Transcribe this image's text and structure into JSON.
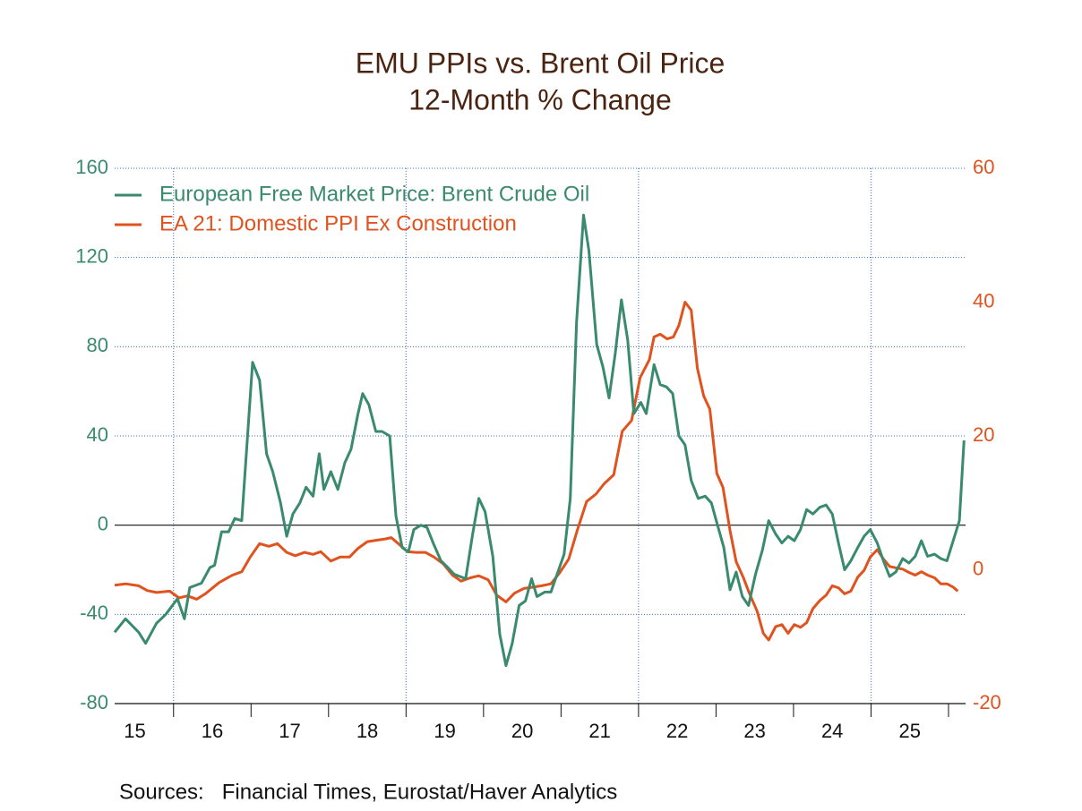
{
  "chart_data": {
    "type": "line",
    "title": "EMU PPIs vs. Brent Oil Price",
    "subtitle": "12-Month % Change",
    "source": "Sources:   Financial Times, Eurostat/Haver Analytics",
    "legend": "upper left",
    "xlim": [
      2015.24,
      2026.22
    ],
    "xticks": [
      {
        "value": 2015.5,
        "label": "15"
      },
      {
        "value": 2016.5,
        "label": "16"
      },
      {
        "value": 2017.5,
        "label": "17"
      },
      {
        "value": 2018.5,
        "label": "18"
      },
      {
        "value": 2019.5,
        "label": "19"
      },
      {
        "value": 2020.5,
        "label": "20"
      },
      {
        "value": 2021.5,
        "label": "21"
      },
      {
        "value": 2022.5,
        "label": "22"
      },
      {
        "value": 2023.5,
        "label": "23"
      },
      {
        "value": 2024.5,
        "label": "24"
      },
      {
        "value": 2025.5,
        "label": "25"
      }
    ],
    "x_tick_marks": [
      2016,
      2017,
      2018,
      2019,
      2020,
      2021,
      2022,
      2023,
      2024,
      2025,
      2026
    ],
    "xgrid": [
      2016,
      2019,
      2022,
      2025
    ],
    "ylim": [
      -80,
      160
    ],
    "yticks": [
      -80,
      -40,
      0,
      40,
      80,
      120,
      160
    ],
    "y2lim": [
      -20,
      60
    ],
    "y2ticks": [
      -20,
      0,
      20,
      40,
      60
    ],
    "grid": true,
    "series": [
      {
        "name": "European Free Market Price: Brent Crude Oil",
        "color": "#3a8a6e",
        "x": [
          2015.24,
          2015.38,
          2015.55,
          2015.64,
          2015.78,
          2015.9,
          2016.05,
          2016.14,
          2016.21,
          2016.36,
          2016.47,
          2016.53,
          2016.62,
          2016.71,
          2016.79,
          2016.88,
          2017.02,
          2017.11,
          2017.2,
          2017.28,
          2017.38,
          2017.46,
          2017.54,
          2017.63,
          2017.71,
          2017.8,
          2017.88,
          2017.94,
          2018.03,
          2018.12,
          2018.21,
          2018.29,
          2018.38,
          2018.44,
          2018.52,
          2018.61,
          2018.69,
          2018.79,
          2018.87,
          2018.95,
          2019.03,
          2019.1,
          2019.19,
          2019.27,
          2019.35,
          2019.45,
          2019.54,
          2019.62,
          2019.77,
          2019.86,
          2019.94,
          2020.02,
          2020.12,
          2020.21,
          2020.29,
          2020.37,
          2020.46,
          2020.54,
          2020.62,
          2020.69,
          2020.79,
          2020.87,
          2020.95,
          2021.04,
          2021.12,
          2021.2,
          2021.29,
          2021.36,
          2021.46,
          2021.54,
          2021.62,
          2021.7,
          2021.78,
          2021.86,
          2021.94,
          2022.03,
          2022.1,
          2022.2,
          2022.28,
          2022.36,
          2022.44,
          2022.52,
          2022.6,
          2022.68,
          2022.77,
          2022.86,
          2022.94,
          2023.02,
          2023.1,
          2023.18,
          2023.26,
          2023.34,
          2023.42,
          2023.51,
          2023.6,
          2023.68,
          2023.77,
          2023.85,
          2023.93,
          2024.01,
          2024.09,
          2024.17,
          2024.25,
          2024.34,
          2024.42,
          2024.5,
          2024.58,
          2024.66,
          2024.74,
          2024.83,
          2024.91,
          2024.99,
          2025.08,
          2025.16,
          2025.24,
          2025.32,
          2025.41,
          2025.49,
          2025.57,
          2025.65,
          2025.73,
          2025.82,
          2025.9,
          2025.98,
          2026.06,
          2026.14,
          2026.2
        ],
        "values": [
          -48,
          -42,
          -48,
          -53,
          -44,
          -40,
          -33,
          -42,
          -28,
          -26,
          -19,
          -18,
          -3,
          -3,
          3,
          2,
          73,
          65,
          32,
          24,
          10,
          -5,
          5,
          10,
          17,
          13,
          32,
          16,
          24,
          16,
          28,
          34,
          50,
          59,
          54,
          42,
          42,
          40,
          4,
          -10,
          -12,
          -2,
          0,
          -1,
          -8,
          -16,
          -19,
          -22,
          -24,
          -4,
          12,
          6,
          -14,
          -49,
          -63,
          -53,
          -36,
          -34,
          -24,
          -32,
          -30,
          -30,
          -22,
          -13,
          12,
          91,
          139,
          123,
          81,
          71,
          57,
          77,
          101,
          83,
          50,
          55,
          50,
          72,
          63,
          62,
          59,
          40,
          36,
          20,
          12,
          13,
          10,
          0,
          -10,
          -29,
          -21,
          -32,
          -36,
          -22,
          -11,
          2,
          -4,
          -8,
          -5,
          -7,
          -2,
          7,
          5,
          8,
          9,
          5,
          -8,
          -20,
          -16,
          -10,
          -5,
          -2,
          -8,
          -16,
          -23,
          -21,
          -15,
          -17,
          -14,
          -7,
          -14,
          -13,
          -15,
          -16,
          -7,
          2,
          38
        ]
      },
      {
        "name": "EA 21: Domestic PPI Ex Construction",
        "color": "#e0521e",
        "axis": "y2",
        "x": [
          2015.24,
          2015.38,
          2015.55,
          2015.66,
          2015.78,
          2015.95,
          2016.07,
          2016.18,
          2016.3,
          2016.42,
          2016.59,
          2016.76,
          2016.88,
          2016.99,
          2017.11,
          2017.23,
          2017.34,
          2017.46,
          2017.57,
          2017.69,
          2017.8,
          2017.9,
          2018.03,
          2018.15,
          2018.27,
          2018.38,
          2018.5,
          2018.61,
          2018.73,
          2018.81,
          2018.9,
          2019.02,
          2019.13,
          2019.25,
          2019.36,
          2019.48,
          2019.6,
          2019.71,
          2019.83,
          2019.94,
          2020.06,
          2020.17,
          2020.29,
          2020.4,
          2020.52,
          2020.64,
          2020.75,
          2020.87,
          2020.98,
          2021.1,
          2021.21,
          2021.33,
          2021.45,
          2021.56,
          2021.68,
          2021.79,
          2021.91,
          2022.02,
          2022.14,
          2022.2,
          2022.28,
          2022.37,
          2022.45,
          2022.52,
          2022.6,
          2022.68,
          2022.76,
          2022.84,
          2022.92,
          2023.01,
          2023.09,
          2023.18,
          2023.26,
          2023.35,
          2023.43,
          2023.53,
          2023.61,
          2023.68,
          2023.77,
          2023.85,
          2023.93,
          2024.01,
          2024.09,
          2024.17,
          2024.25,
          2024.34,
          2024.42,
          2024.5,
          2024.58,
          2024.66,
          2024.74,
          2024.83,
          2024.91,
          2024.99,
          2025.08,
          2025.16,
          2025.24,
          2025.32,
          2025.41,
          2025.49,
          2025.57,
          2025.65,
          2025.73,
          2025.82,
          2025.9,
          2025.98,
          2026.06,
          2026.12
        ],
        "values": [
          -2.3,
          -2.1,
          -2.4,
          -3.1,
          -3.4,
          -3.2,
          -4.2,
          -3.9,
          -4.4,
          -3.5,
          -1.9,
          -0.8,
          -0.3,
          1.9,
          3.9,
          3.5,
          3.9,
          2.6,
          2.1,
          2.6,
          2.3,
          2.7,
          1.3,
          1.9,
          1.9,
          3.2,
          4.2,
          4.4,
          4.6,
          4.8,
          3.9,
          2.7,
          2.6,
          2.6,
          1.9,
          0.9,
          -0.8,
          -1.7,
          -1.2,
          -0.9,
          -1.5,
          -3.8,
          -4.8,
          -3.5,
          -2.8,
          -2.6,
          -2.4,
          -2.1,
          -0.5,
          1.6,
          5.9,
          10.2,
          11.3,
          12.9,
          14.2,
          20.7,
          22.3,
          28.7,
          31.4,
          34.8,
          35.2,
          34.5,
          34.8,
          36.5,
          40.0,
          38.8,
          30.1,
          26.0,
          24.0,
          14.4,
          12.3,
          5.9,
          1.2,
          -1.1,
          -3.5,
          -6.2,
          -9.5,
          -10.5,
          -8.5,
          -8.2,
          -9.5,
          -8.2,
          -8.6,
          -7.9,
          -5.8,
          -4.6,
          -3.8,
          -2.4,
          -2.7,
          -3.6,
          -3.2,
          -1.1,
          -0.1,
          1.9,
          3.0,
          1.6,
          0.5,
          0.3,
          0.1,
          -0.4,
          -0.8,
          -0.3,
          -0.8,
          -1.2,
          -2.1,
          -2.1,
          -2.6,
          -3.2
        ]
      }
    ]
  }
}
